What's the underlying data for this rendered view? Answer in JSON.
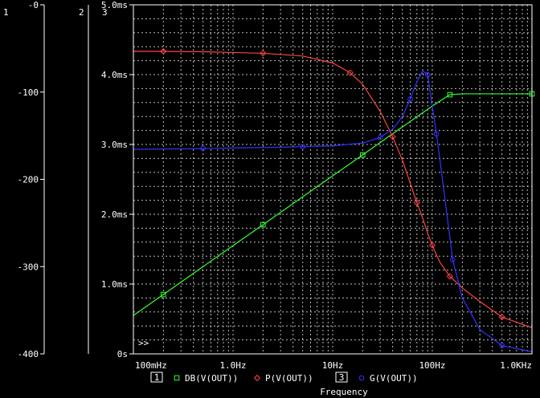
{
  "chart_data": {
    "type": "line",
    "xlabel": "Frequency",
    "x_scale": "log",
    "x_ticks": [
      {
        "value": 0.1,
        "label": "100mHz"
      },
      {
        "value": 1,
        "label": "1.0Hz"
      },
      {
        "value": 10,
        "label": "10Hz"
      },
      {
        "value": 100,
        "label": "100Hz"
      },
      {
        "value": 1000,
        "label": "1.0KHz"
      }
    ],
    "xlim": [
      0.1,
      1000
    ],
    "axes": [
      {
        "id": "1",
        "ylim": [
          -400,
          0
        ],
        "ticks": [
          {
            "value": 0,
            "label": "-0"
          },
          {
            "value": -100,
            "label": "-100"
          },
          {
            "value": -200,
            "label": "-200"
          },
          {
            "value": -300,
            "label": "-300"
          },
          {
            "value": -400,
            "label": "-400"
          }
        ]
      },
      {
        "id": "2",
        "ylim": [
          -180,
          0
        ],
        "ticks": []
      },
      {
        "id": "3",
        "ylim": [
          0,
          5
        ],
        "ticks": [
          {
            "value": 0,
            "label": "0s"
          },
          {
            "value": 1,
            "label": "1.0ms"
          },
          {
            "value": 2,
            "label": "2.0ms"
          },
          {
            "value": 3,
            "label": "3.0ms"
          },
          {
            "value": 4,
            "label": "4.0ms"
          },
          {
            "value": 5,
            "label": "5.0ms"
          }
        ]
      }
    ],
    "grid": true,
    "overflow_marker": ">>",
    "series": [
      {
        "name": "DB(V(OUT))",
        "axis": "1",
        "color": "#33ff33",
        "marker": "square",
        "x": [
          0.1,
          0.2,
          0.5,
          1,
          2,
          5,
          10,
          20,
          50,
          100,
          150,
          200,
          500,
          1000
        ],
        "y": [
          -356,
          -332,
          -300,
          -276,
          -252,
          -220,
          -196,
          -172,
          -140,
          -116,
          -103,
          -102,
          -102,
          -102
        ]
      },
      {
        "name": "P(V(OUT))",
        "axis": "2",
        "color": "#ff4444",
        "marker": "diamond",
        "x": [
          0.1,
          0.2,
          0.5,
          1,
          2,
          5,
          10,
          15,
          20,
          30,
          40,
          50,
          60,
          70,
          80,
          90,
          100,
          110,
          120,
          150,
          200,
          300,
          500,
          1000
        ],
        "y": [
          -24,
          -24,
          -24.2,
          -24.6,
          -25,
          -26.4,
          -30,
          -35,
          -41,
          -55,
          -68,
          -80,
          -92,
          -102,
          -110,
          -118,
          -124,
          -129,
          -133,
          -140,
          -146,
          -153,
          -161,
          -166.5
        ]
      },
      {
        "name": "G(V(OUT))",
        "axis": "3",
        "color": "#3333ff",
        "marker": "circle",
        "x": [
          0.1,
          0.5,
          1,
          3,
          5,
          10,
          20,
          30,
          40,
          50,
          60,
          70,
          80,
          90,
          95,
          100,
          110,
          120,
          140,
          160,
          200,
          300,
          500,
          1000
        ],
        "y": [
          2.93,
          2.94,
          2.95,
          2.96,
          2.97,
          2.98,
          3.02,
          3.1,
          3.22,
          3.4,
          3.65,
          3.9,
          4.05,
          4.0,
          3.75,
          3.55,
          3.15,
          2.75,
          2.0,
          1.35,
          0.8,
          0.35,
          0.12,
          0.03
        ]
      }
    ]
  }
}
